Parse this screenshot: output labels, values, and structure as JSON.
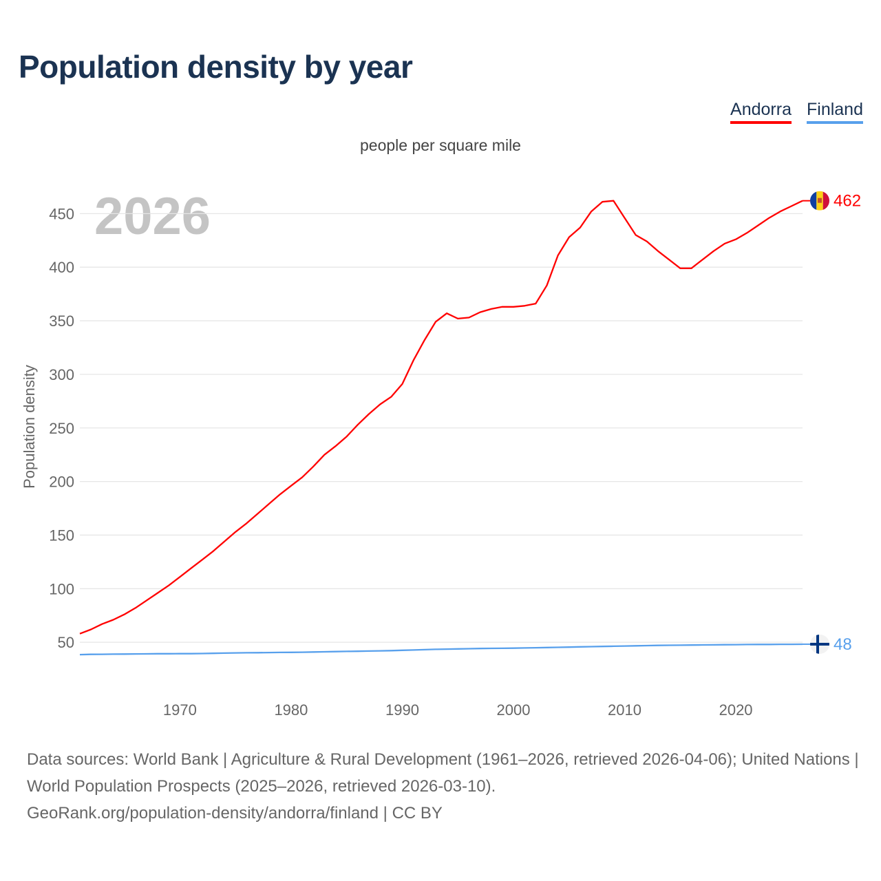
{
  "title": "Population density by year",
  "subtitle": "people per square mile",
  "legend": [
    {
      "name": "Andorra",
      "color": "#ff0000"
    },
    {
      "name": "Finland",
      "color": "#58a0ec"
    }
  ],
  "footer": {
    "line1": "Data sources: World Bank | Agriculture & Rural Development (1961–2026, retrieved 2026-04-06); United Nations | World Population Prospects (2025–2026, retrieved 2026-03-10).",
    "line2": "GeoRank.org/population-density/andorra/finland | CC BY"
  },
  "chart_data": {
    "type": "line",
    "title": "Population density by year",
    "ylabel": "Population density",
    "xlabel": "",
    "year_watermark": "2026",
    "xlim": [
      1961,
      2026
    ],
    "ylim": [
      0,
      480
    ],
    "xticks": [
      1970,
      1980,
      1990,
      2000,
      2010,
      2020
    ],
    "yticks": [
      50,
      100,
      150,
      200,
      250,
      300,
      350,
      400,
      450
    ],
    "grid": true,
    "legend_position": "top-right",
    "x": [
      1961,
      1962,
      1963,
      1964,
      1965,
      1966,
      1967,
      1968,
      1969,
      1970,
      1971,
      1972,
      1973,
      1974,
      1975,
      1976,
      1977,
      1978,
      1979,
      1980,
      1981,
      1982,
      1983,
      1984,
      1985,
      1986,
      1987,
      1988,
      1989,
      1990,
      1991,
      1992,
      1993,
      1994,
      1995,
      1996,
      1997,
      1998,
      1999,
      2000,
      2001,
      2002,
      2003,
      2004,
      2005,
      2006,
      2007,
      2008,
      2009,
      2010,
      2011,
      2012,
      2013,
      2014,
      2015,
      2016,
      2017,
      2018,
      2019,
      2020,
      2021,
      2022,
      2023,
      2024,
      2025,
      2026
    ],
    "series": [
      {
        "name": "Andorra",
        "color": "#ff0000",
        "end_label": "462",
        "values": [
          58,
          62,
          67,
          71,
          76,
          82,
          89,
          96,
          103,
          111,
          119,
          127,
          135,
          144,
          153,
          161,
          170,
          179,
          188,
          196,
          204,
          214,
          225,
          233,
          242,
          253,
          263,
          272,
          279,
          291,
          313,
          332,
          349,
          357,
          352,
          353,
          358,
          361,
          363,
          363,
          364,
          366,
          383,
          411,
          428,
          437,
          452,
          461,
          462,
          446,
          430,
          424,
          415,
          407,
          399,
          399,
          407,
          415,
          422,
          426,
          432,
          439,
          446,
          452,
          457,
          462
        ]
      },
      {
        "name": "Finland",
        "color": "#58a0ec",
        "end_label": "48",
        "values": [
          38.5,
          38.7,
          38.8,
          38.9,
          39.0,
          39.1,
          39.2,
          39.3,
          39.3,
          39.4,
          39.4,
          39.5,
          39.7,
          39.9,
          40.1,
          40.2,
          40.3,
          40.4,
          40.5,
          40.6,
          40.7,
          40.9,
          41.1,
          41.3,
          41.5,
          41.6,
          41.8,
          42.0,
          42.2,
          42.5,
          42.8,
          43.1,
          43.4,
          43.6,
          43.8,
          44.0,
          44.2,
          44.3,
          44.4,
          44.5,
          44.7,
          44.9,
          45.1,
          45.3,
          45.5,
          45.7,
          45.9,
          46.1,
          46.3,
          46.5,
          46.7,
          46.9,
          47.1,
          47.2,
          47.3,
          47.4,
          47.5,
          47.6,
          47.7,
          47.8,
          47.9,
          48.0,
          48.0,
          48.1,
          48.1,
          48.2
        ]
      }
    ]
  }
}
